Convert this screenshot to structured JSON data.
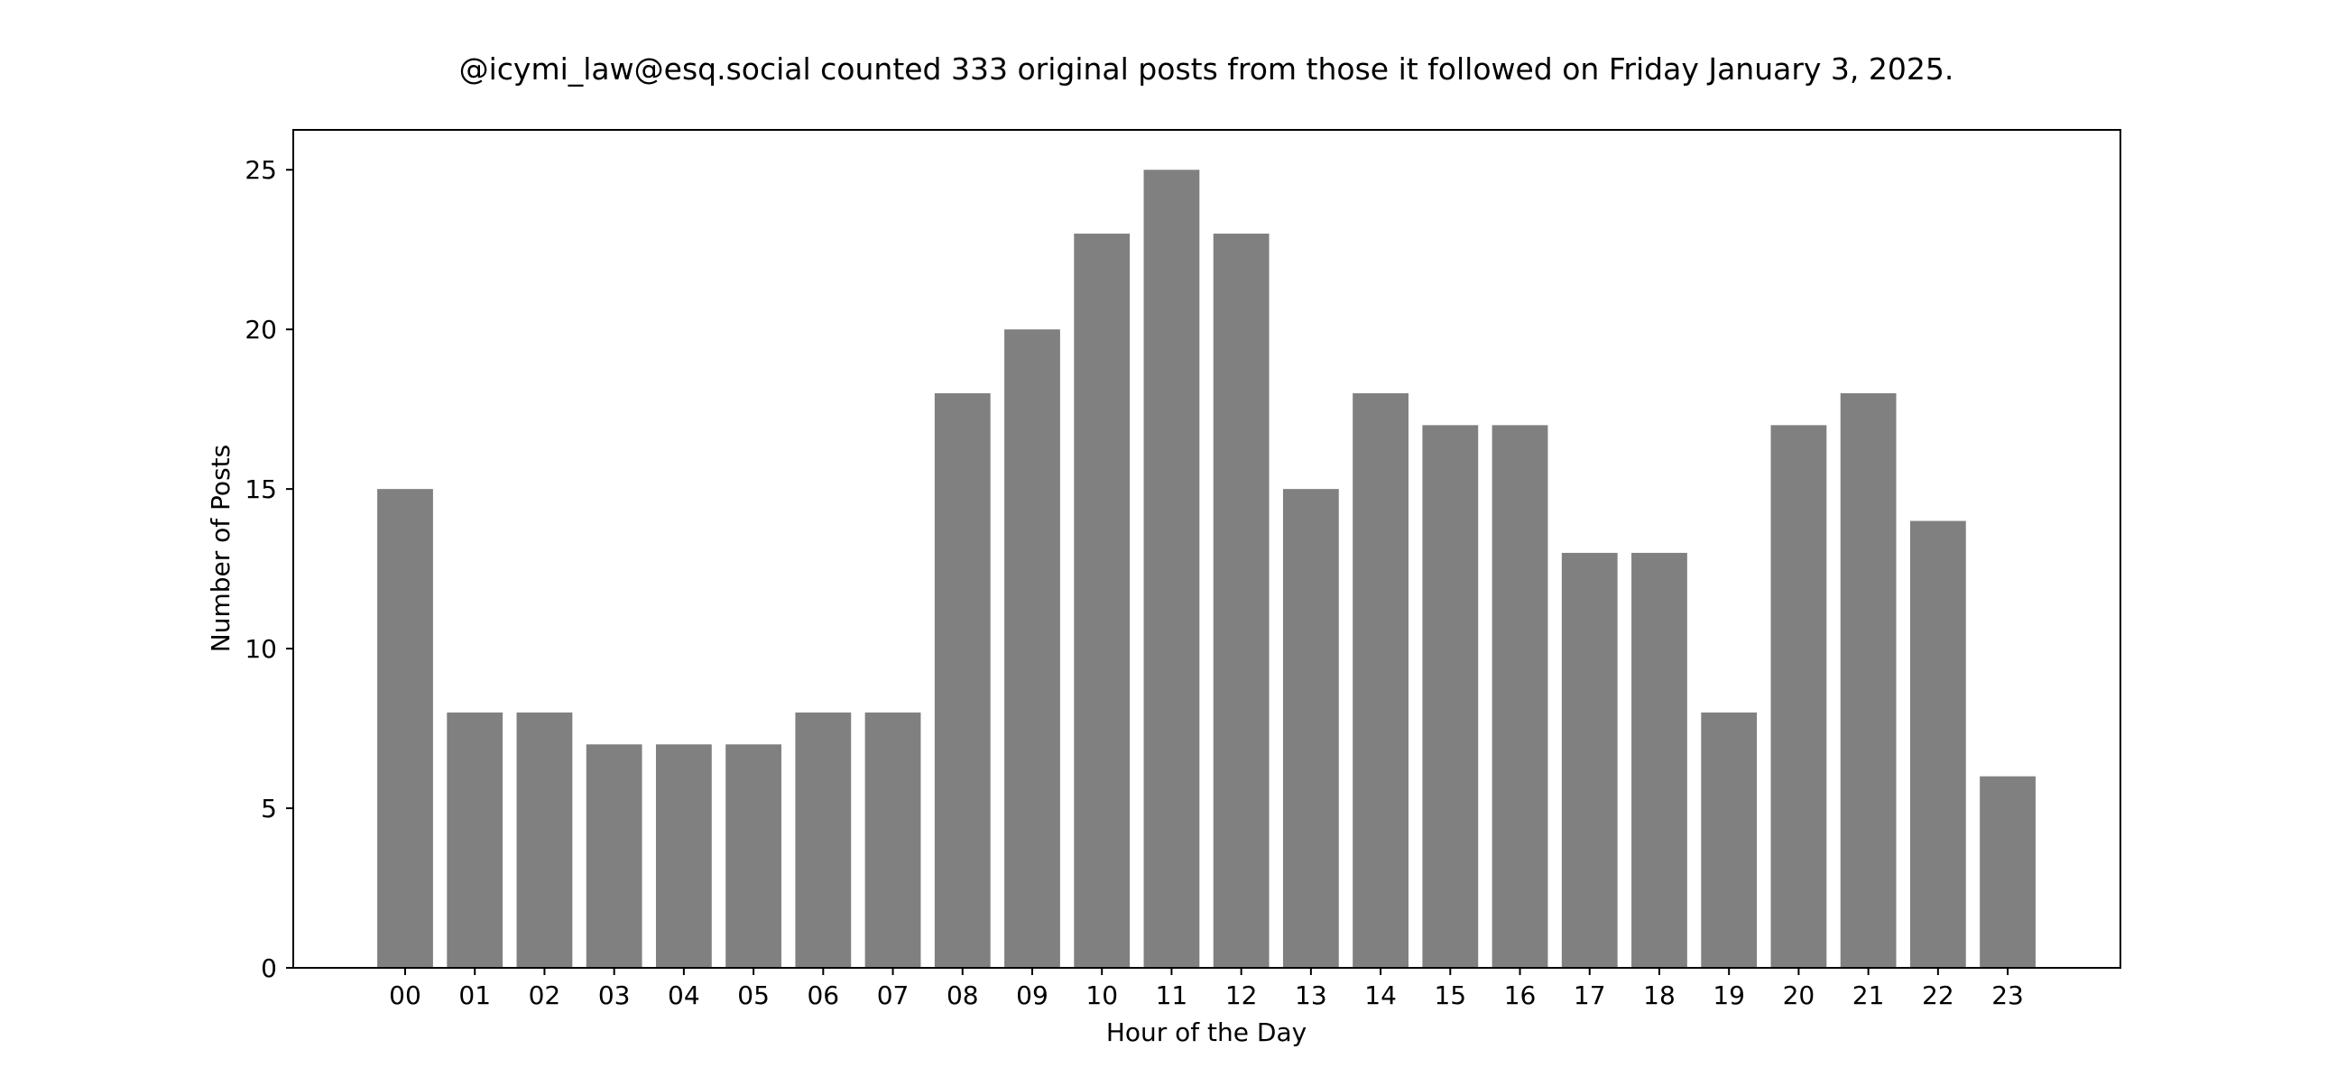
{
  "chart_data": {
    "type": "bar",
    "title": "@icymi_law@esq.social counted 333 original posts from those it followed on Friday January 3, 2025.",
    "xlabel": "Hour of the Day",
    "ylabel": "Number of Posts",
    "categories": [
      "00",
      "01",
      "02",
      "03",
      "04",
      "05",
      "06",
      "07",
      "08",
      "09",
      "10",
      "11",
      "12",
      "13",
      "14",
      "15",
      "16",
      "17",
      "18",
      "19",
      "20",
      "21",
      "22",
      "23"
    ],
    "values": [
      15,
      8,
      8,
      7,
      7,
      7,
      8,
      8,
      18,
      20,
      23,
      25,
      23,
      15,
      18,
      17,
      17,
      13,
      13,
      8,
      17,
      18,
      14,
      6
    ],
    "ylim": [
      0,
      26.25
    ],
    "yticks": [
      0,
      5,
      10,
      15,
      20,
      25
    ],
    "bar_color": "#808080",
    "grid": false,
    "legend": "none"
  }
}
